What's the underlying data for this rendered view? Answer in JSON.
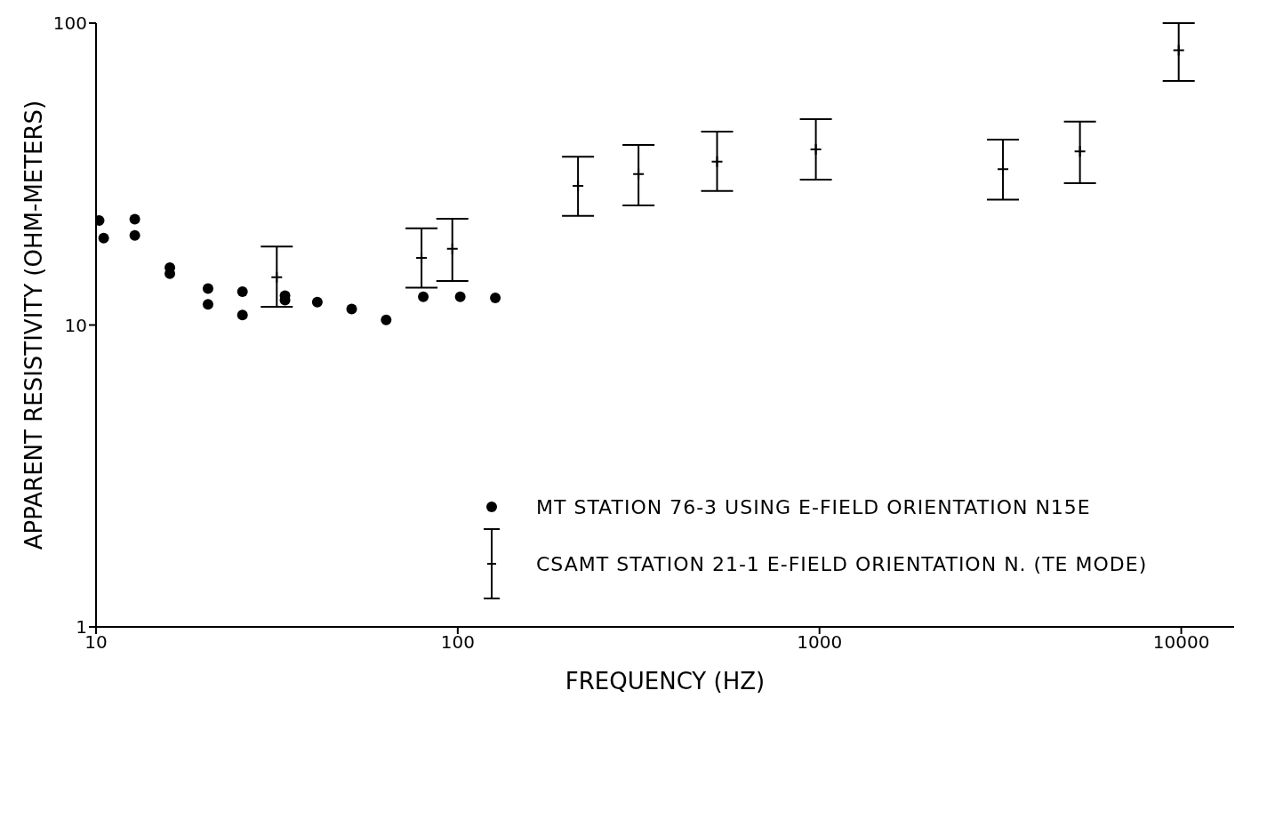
{
  "chart_data": {
    "type": "scatter",
    "xlabel": "FREQUENCY (HZ)",
    "ylabel": "APPARENT RESISTIVITY (OHM-METERS)",
    "log": "xy",
    "xlim": [
      10,
      14000
    ],
    "xticks": [
      10,
      100,
      1000,
      10000
    ],
    "ylim": [
      1,
      100
    ],
    "yticks": [
      1,
      10,
      100
    ],
    "grid": false,
    "legend": "bottom right",
    "series": [
      {
        "name": "MT STATION 76-3 USING E-FIELD ORIENTATION N15E",
        "color": "#000000",
        "marker": "circle",
        "x": [
          10.2,
          10.5,
          12.8,
          12.8,
          16.0,
          16.0,
          20.4,
          20.4,
          25.4,
          25.4,
          33.3,
          33.3,
          40.9,
          50.9,
          63.4,
          80.3,
          101.6,
          127
        ],
        "values": [
          22.2,
          19.4,
          22.4,
          19.8,
          15.5,
          14.8,
          13.2,
          11.7,
          12.9,
          10.8,
          12.5,
          12.1,
          11.9,
          11.3,
          10.4,
          12.4,
          12.4,
          12.3
        ]
      },
      {
        "name": "CSAMT STATION 21-1 E-FIELD ORIENTATION N. (TE MODE)",
        "color": "#000000",
        "marker": "cross",
        "x": [
          31.6,
          79.4,
          96.6,
          215,
          316,
          521,
          977,
          3215,
          5248,
          9840
        ],
        "values": [
          14.4,
          16.7,
          17.9,
          28.9,
          31.6,
          34.8,
          38.2,
          32.8,
          37.6,
          81.3
        ],
        "errors": [
          [
            11.5,
            18.2
          ],
          [
            13.3,
            20.9
          ],
          [
            14.0,
            22.5
          ],
          [
            23.0,
            36.1
          ],
          [
            24.9,
            39.5
          ],
          [
            27.8,
            43.7
          ],
          [
            30.3,
            48.1
          ],
          [
            26.0,
            41.1
          ],
          [
            29.5,
            47.2
          ],
          [
            64.3,
            100
          ]
        ]
      }
    ]
  }
}
